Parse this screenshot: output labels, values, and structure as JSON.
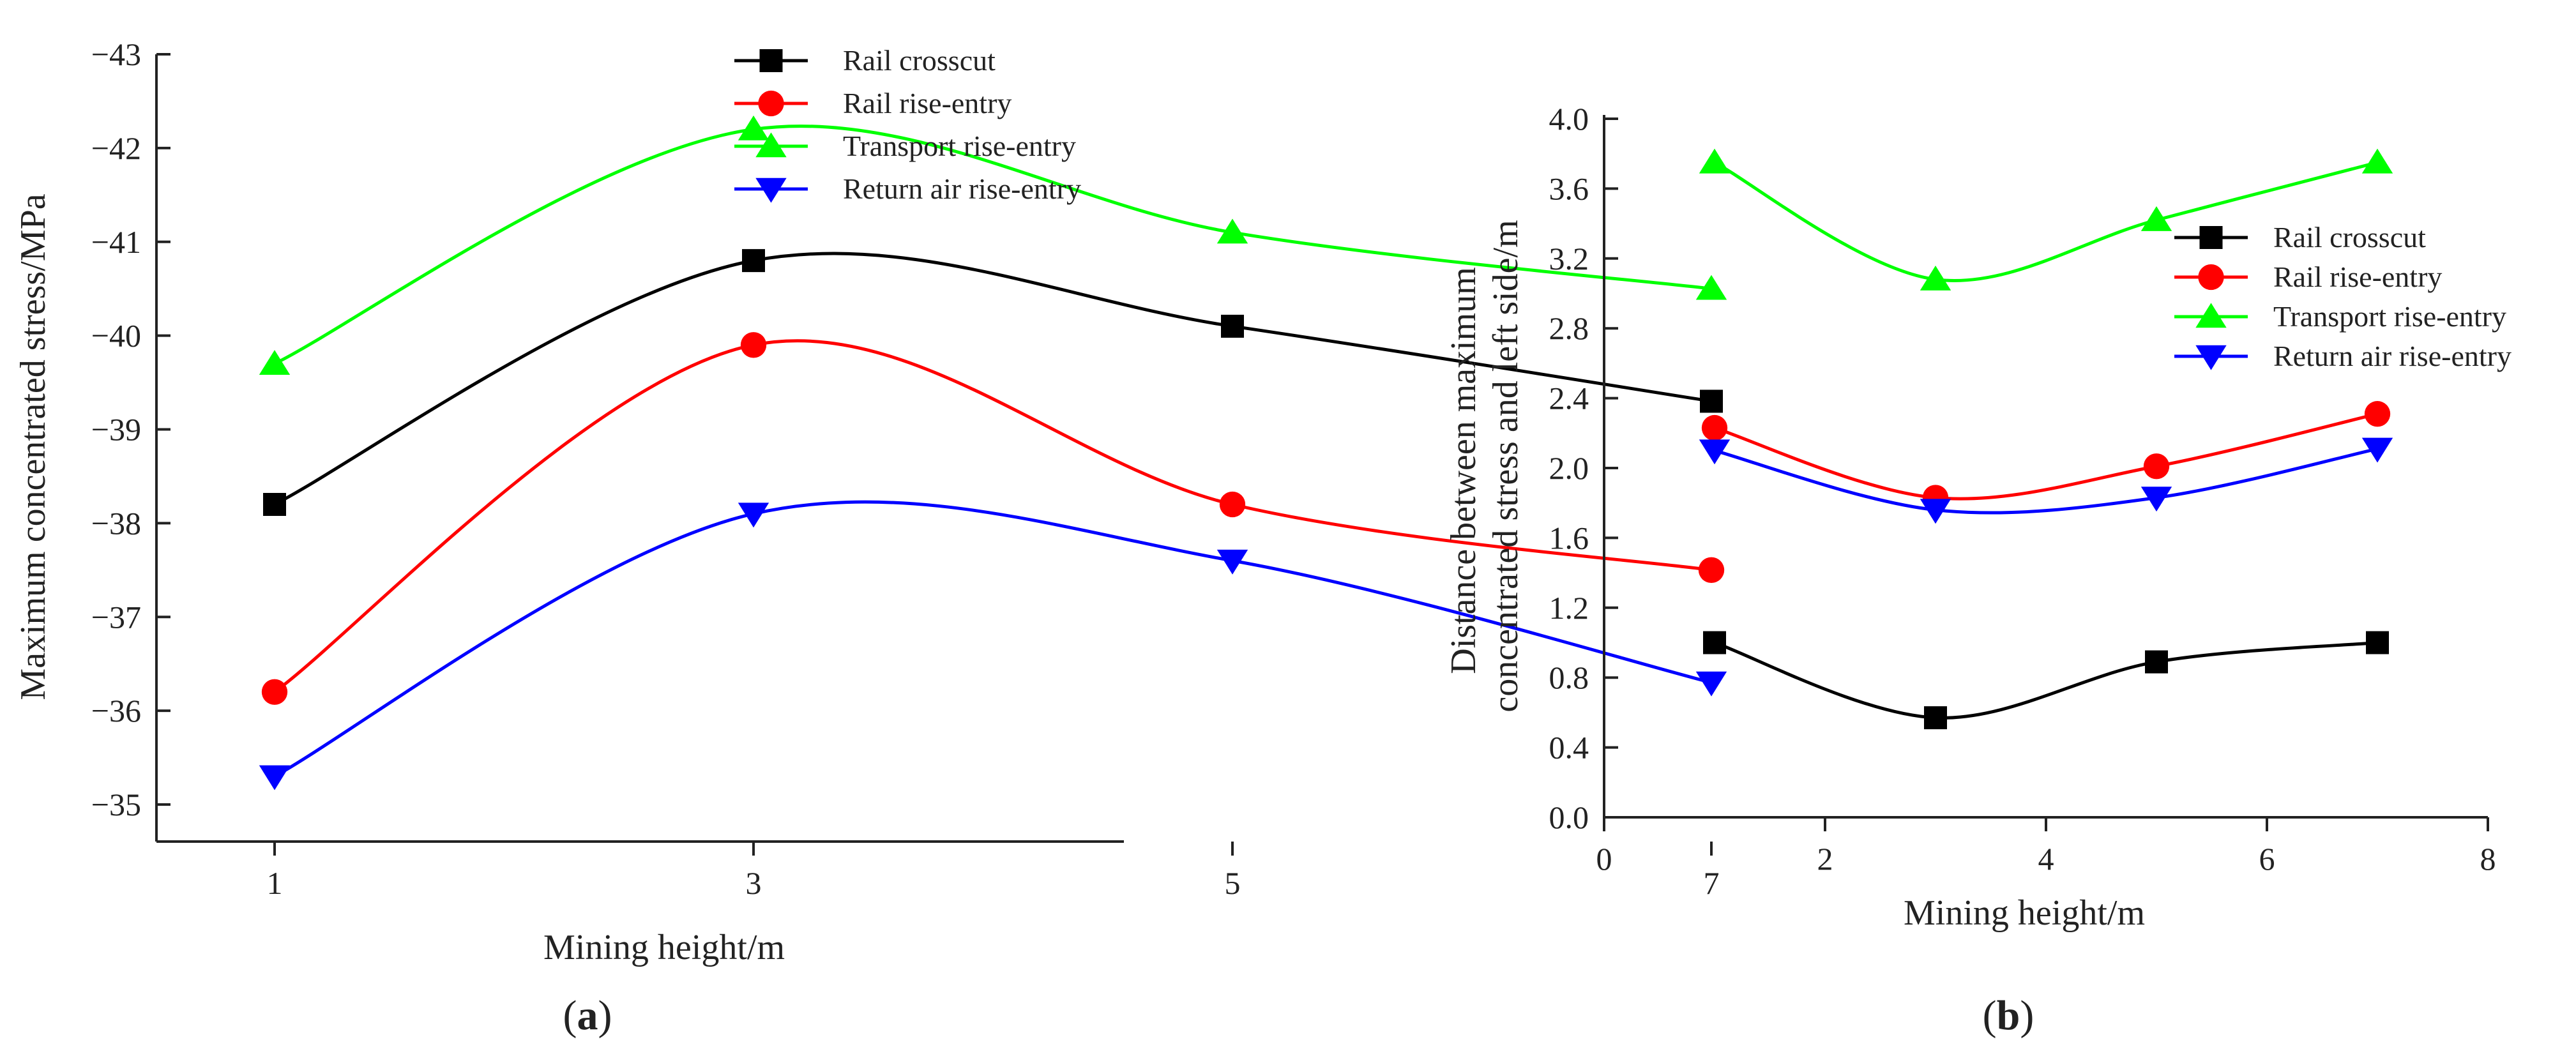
{
  "chart_data": [
    {
      "type": "line",
      "panel_label": {
        "open": "(",
        "letter": "a",
        "close": ")"
      },
      "xlabel": "Mining height/m",
      "ylabel": "Maximum concentrated stress/MPa",
      "x": [
        1,
        3,
        5,
        7
      ],
      "x_ticks": [
        "1",
        "3",
        "5",
        "7"
      ],
      "ylim": [
        -35,
        -43
      ],
      "y_ticks": [
        "−35",
        "−36",
        "−37",
        "−38",
        "−39",
        "−40",
        "−41",
        "−42",
        "−43"
      ],
      "y_reversed": true,
      "grid": false,
      "legend_position": "top-right",
      "series": [
        {
          "name": "Rail crosscut",
          "marker": "square",
          "color": "#000000",
          "values": [
            -38.2,
            -40.8,
            -40.1,
            -39.3
          ]
        },
        {
          "name": "Rail rise-entry",
          "marker": "circle",
          "color": "#ff0000",
          "values": [
            -36.2,
            -39.9,
            -38.2,
            -37.5
          ]
        },
        {
          "name": "Transport rise-entry",
          "marker": "triangle-up",
          "color": "#00ff00",
          "values": [
            -39.7,
            -42.2,
            -41.1,
            -40.5
          ]
        },
        {
          "name": "Return air rise-entry",
          "marker": "triangle-down",
          "color": "#0000ff",
          "values": [
            -35.3,
            -38.1,
            -37.6,
            -36.3
          ]
        }
      ]
    },
    {
      "type": "line",
      "panel_label": {
        "open": "(",
        "letter": "b",
        "close": ")"
      },
      "xlabel": "Mining height/m",
      "ylabel_lines": [
        "Distance between maximum",
        "concentrated stress and left side/m"
      ],
      "x": [
        1,
        3,
        5,
        7
      ],
      "xlim": [
        0,
        8
      ],
      "x_ticks": [
        "0",
        "2",
        "4",
        "6",
        "8"
      ],
      "ylim": [
        0,
        4
      ],
      "y_ticks": [
        "0.0",
        "0.4",
        "0.8",
        "1.2",
        "1.6",
        "2.0",
        "2.4",
        "2.8",
        "3.2",
        "3.6",
        "4.0"
      ],
      "grid": false,
      "legend_position": "top-right",
      "series": [
        {
          "name": "Rail crosscut",
          "marker": "square",
          "color": "#000000",
          "values": [
            1.0,
            0.57,
            0.89,
            1.0
          ]
        },
        {
          "name": "Rail rise-entry",
          "marker": "circle",
          "color": "#ff0000",
          "values": [
            2.23,
            1.83,
            2.01,
            2.31
          ]
        },
        {
          "name": "Transport rise-entry",
          "marker": "triangle-up",
          "color": "#00ff00",
          "values": [
            3.75,
            3.08,
            3.42,
            3.75
          ]
        },
        {
          "name": "Return air rise-entry",
          "marker": "triangle-down",
          "color": "#0000ff",
          "values": [
            2.1,
            1.76,
            1.83,
            2.11
          ]
        }
      ]
    }
  ]
}
